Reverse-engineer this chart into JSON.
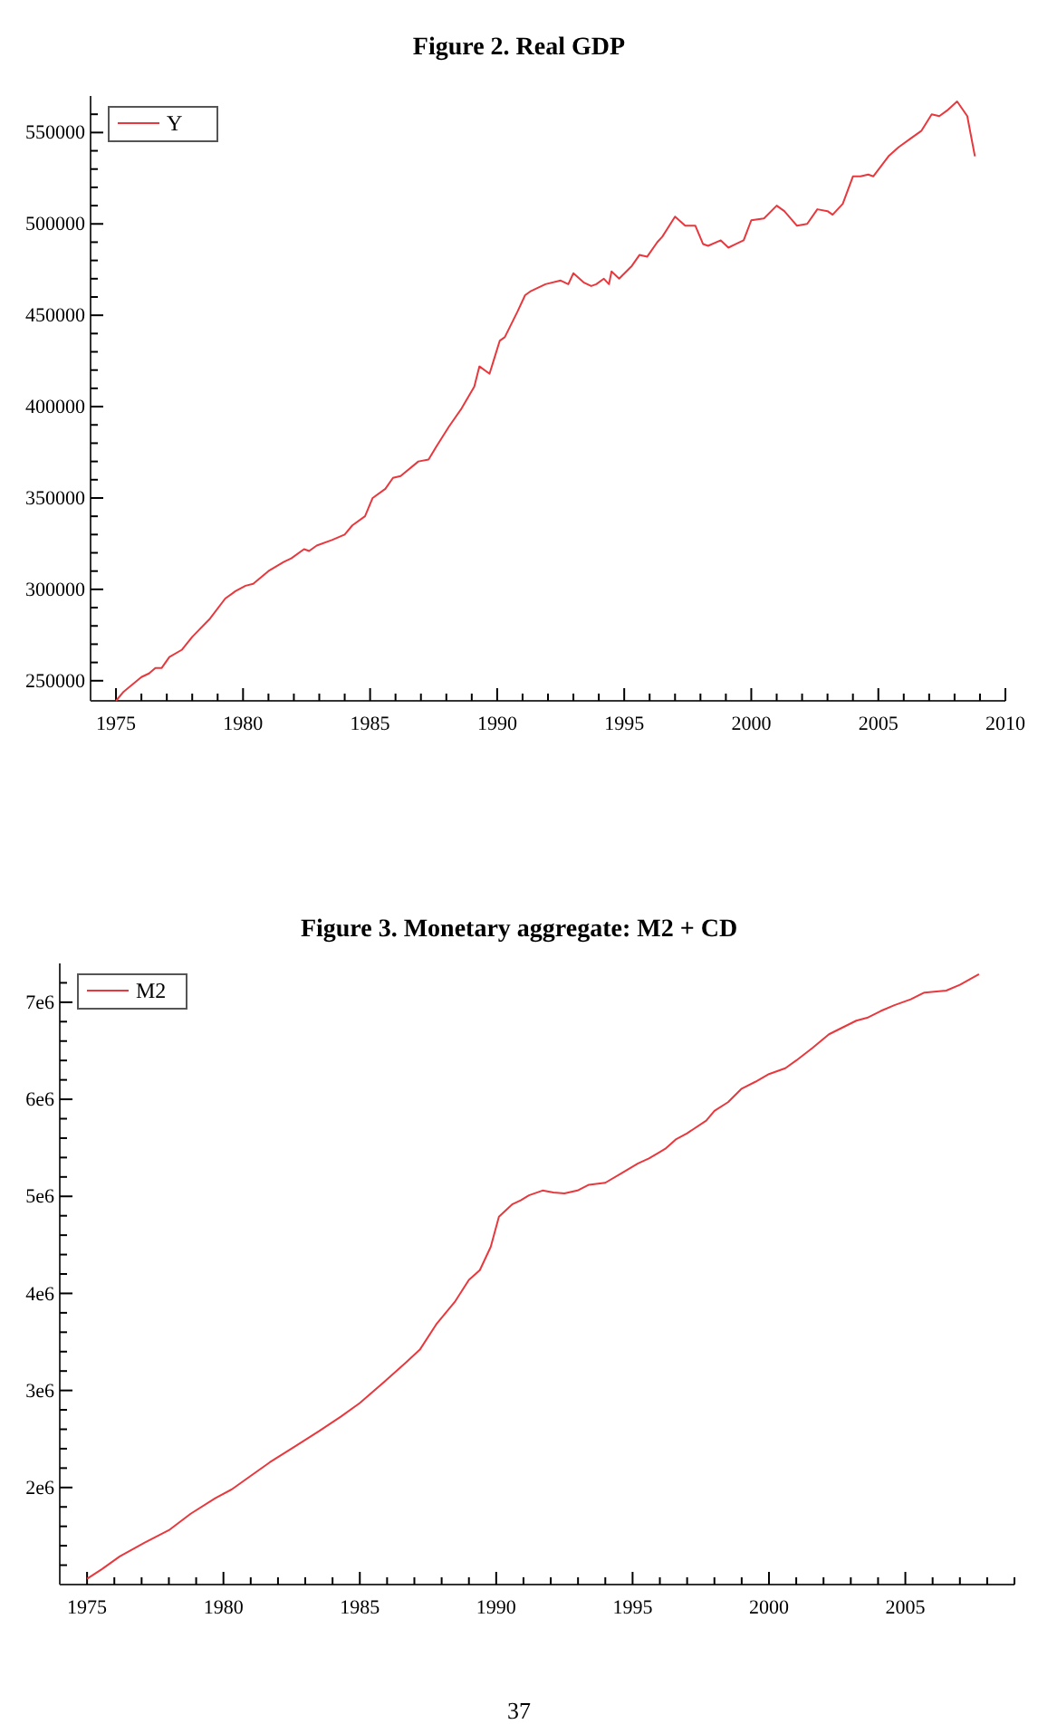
{
  "chart_data": [
    {
      "type": "line",
      "title": "Figure 2.  Real GDP",
      "legend": "top left",
      "xlim": [
        1974,
        2010
      ],
      "ylim": [
        239000,
        570000
      ],
      "xticks": [
        1975,
        {
          "value": 1976,
          "label": null
        },
        {
          "value": 1977,
          "label": null
        },
        {
          "value": 1978,
          "label": null
        },
        {
          "value": 1979,
          "label": null
        },
        1980,
        {
          "value": 1981,
          "label": null
        },
        {
          "value": 1982,
          "label": null
        },
        {
          "value": 1983,
          "label": null
        },
        {
          "value": 1984,
          "label": null
        },
        1985,
        {
          "value": 1986,
          "label": null
        },
        {
          "value": 1987,
          "label": null
        },
        {
          "value": 1988,
          "label": null
        },
        {
          "value": 1989,
          "label": null
        },
        1990,
        {
          "value": 1991,
          "label": null
        },
        {
          "value": 1992,
          "label": null
        },
        {
          "value": 1993,
          "label": null
        },
        {
          "value": 1994,
          "label": null
        },
        1995,
        {
          "value": 1996,
          "label": null
        },
        {
          "value": 1997,
          "label": null
        },
        {
          "value": 1998,
          "label": null
        },
        {
          "value": 1999,
          "label": null
        },
        2000,
        {
          "value": 2001,
          "label": null
        },
        {
          "value": 2002,
          "label": null
        },
        {
          "value": 2003,
          "label": null
        },
        {
          "value": 2004,
          "label": null
        },
        2005,
        {
          "value": 2006,
          "label": null
        },
        {
          "value": 2007,
          "label": null
        },
        {
          "value": 2008,
          "label": null
        },
        {
          "value": 2009,
          "label": null
        },
        2010
      ],
      "yticks": [
        250000,
        {
          "value": 260000,
          "label": null
        },
        {
          "value": 270000,
          "label": null
        },
        {
          "value": 280000,
          "label": null
        },
        {
          "value": 290000,
          "label": null
        },
        300000,
        {
          "value": 310000,
          "label": null
        },
        {
          "value": 320000,
          "label": null
        },
        {
          "value": 330000,
          "label": null
        },
        {
          "value": 340000,
          "label": null
        },
        350000,
        {
          "value": 360000,
          "label": null
        },
        {
          "value": 370000,
          "label": null
        },
        {
          "value": 380000,
          "label": null
        },
        {
          "value": 390000,
          "label": null
        },
        400000,
        {
          "value": 410000,
          "label": null
        },
        {
          "value": 420000,
          "label": null
        },
        {
          "value": 430000,
          "label": null
        },
        {
          "value": 440000,
          "label": null
        },
        450000,
        {
          "value": 460000,
          "label": null
        },
        {
          "value": 470000,
          "label": null
        },
        {
          "value": 480000,
          "label": null
        },
        {
          "value": 490000,
          "label": null
        },
        500000,
        {
          "value": 510000,
          "label": null
        },
        {
          "value": 520000,
          "label": null
        },
        {
          "value": 530000,
          "label": null
        },
        {
          "value": 540000,
          "label": null
        },
        550000,
        {
          "value": 560000,
          "label": null
        }
      ],
      "series": [
        {
          "name": "Y",
          "color": "#e8383d",
          "x": [
            1975.0,
            1975.3,
            1976.0,
            1976.3,
            1976.55,
            1976.8,
            1977.1,
            1977.6,
            1978.0,
            1978.7,
            1979.3,
            1979.7,
            1980.1,
            1980.4,
            1981.0,
            1981.6,
            1981.9,
            1982.4,
            1982.6,
            1982.9,
            1983.5,
            1984.0,
            1984.3,
            1984.8,
            1985.1,
            1985.6,
            1985.9,
            1986.2,
            1986.9,
            1987.3,
            1987.6,
            1988.1,
            1988.6,
            1989.1,
            1989.3,
            1989.7,
            1989.9,
            1990.1,
            1990.3,
            1990.8,
            1991.1,
            1991.3,
            1991.9,
            1992.5,
            1992.8,
            1993.0,
            1993.4,
            1993.7,
            1993.9,
            1994.2,
            1994.4,
            1994.5,
            1994.8,
            1995.3,
            1995.6,
            1995.9,
            1996.3,
            1996.5,
            1997.0,
            1997.4,
            1997.8,
            1998.1,
            1998.3,
            1998.8,
            1999.1,
            1999.4,
            1999.7,
            2000.0,
            2000.5,
            2001.0,
            2001.3,
            2001.8,
            2002.2,
            2002.6,
            2003.0,
            2003.2,
            2003.6,
            2004.0,
            2004.3,
            2004.6,
            2004.8,
            2005.4,
            2005.8,
            2006.3,
            2006.7,
            2007.1,
            2007.4,
            2007.7,
            2008.1,
            2008.5,
            2008.8
          ],
          "values": [
            239000,
            244000,
            252000,
            254000,
            257000,
            257000,
            263000,
            267000,
            274000,
            284000,
            295000,
            299000,
            302000,
            303000,
            310000,
            315000,
            317000,
            322000,
            321000,
            324000,
            327000,
            330000,
            335000,
            340000,
            350000,
            355000,
            361000,
            362000,
            370000,
            371000,
            378000,
            389000,
            399000,
            411000,
            422000,
            418000,
            427000,
            436000,
            438000,
            452000,
            461000,
            463000,
            467000,
            469000,
            467000,
            473000,
            468000,
            466000,
            467000,
            470000,
            467000,
            474000,
            470000,
            477000,
            483000,
            482000,
            490000,
            493000,
            504000,
            499000,
            499000,
            489000,
            488000,
            491000,
            487000,
            489000,
            491000,
            502000,
            503000,
            510000,
            507000,
            499000,
            500000,
            508000,
            507000,
            505000,
            511000,
            526000,
            526000,
            527000,
            526000,
            537000,
            542000,
            547000,
            551000,
            560000,
            559000,
            562000,
            567000,
            559000,
            537000
          ]
        }
      ]
    },
    {
      "type": "line",
      "title": "Figure 3.  Monetary aggregate: M2 + CD",
      "legend": "top left",
      "annotations": [
        "37"
      ],
      "xlim": [
        1974,
        2009
      ],
      "ylim": [
        1000000,
        7400000
      ],
      "xticks": [
        1975,
        {
          "value": 1976,
          "label": null
        },
        {
          "value": 1977,
          "label": null
        },
        {
          "value": 1978,
          "label": null
        },
        {
          "value": 1979,
          "label": null
        },
        1980,
        {
          "value": 1981,
          "label": null
        },
        {
          "value": 1982,
          "label": null
        },
        {
          "value": 1983,
          "label": null
        },
        {
          "value": 1984,
          "label": null
        },
        1985,
        {
          "value": 1986,
          "label": null
        },
        {
          "value": 1987,
          "label": null
        },
        {
          "value": 1988,
          "label": null
        },
        {
          "value": 1989,
          "label": null
        },
        1990,
        {
          "value": 1991,
          "label": null
        },
        {
          "value": 1992,
          "label": null
        },
        {
          "value": 1993,
          "label": null
        },
        {
          "value": 1994,
          "label": null
        },
        1995,
        {
          "value": 1996,
          "label": null
        },
        {
          "value": 1997,
          "label": null
        },
        {
          "value": 1998,
          "label": null
        },
        {
          "value": 1999,
          "label": null
        },
        2000,
        {
          "value": 2001,
          "label": null
        },
        {
          "value": 2002,
          "label": null
        },
        {
          "value": 2003,
          "label": null
        },
        {
          "value": 2004,
          "label": null
        },
        2005,
        {
          "value": 2006,
          "label": null
        },
        {
          "value": 2007,
          "label": null
        },
        {
          "value": 2008,
          "label": null
        },
        {
          "value": 2009,
          "label": null
        }
      ],
      "yticks": [
        {
          "value": 1200000,
          "label": null
        },
        {
          "value": 1400000,
          "label": null
        },
        {
          "value": 1600000,
          "label": null
        },
        {
          "value": 1800000,
          "label": null
        },
        {
          "value": 2000000,
          "label": "2e6"
        },
        {
          "value": 2200000,
          "label": null
        },
        {
          "value": 2400000,
          "label": null
        },
        {
          "value": 2600000,
          "label": null
        },
        {
          "value": 2800000,
          "label": null
        },
        {
          "value": 3000000,
          "label": "3e6"
        },
        {
          "value": 3200000,
          "label": null
        },
        {
          "value": 3400000,
          "label": null
        },
        {
          "value": 3600000,
          "label": null
        },
        {
          "value": 3800000,
          "label": null
        },
        {
          "value": 4000000,
          "label": "4e6"
        },
        {
          "value": 4200000,
          "label": null
        },
        {
          "value": 4400000,
          "label": null
        },
        {
          "value": 4600000,
          "label": null
        },
        {
          "value": 4800000,
          "label": null
        },
        {
          "value": 5000000,
          "label": "5e6"
        },
        {
          "value": 5200000,
          "label": null
        },
        {
          "value": 5400000,
          "label": null
        },
        {
          "value": 5600000,
          "label": null
        },
        {
          "value": 5800000,
          "label": null
        },
        {
          "value": 6000000,
          "label": "6e6"
        },
        {
          "value": 6200000,
          "label": null
        },
        {
          "value": 6400000,
          "label": null
        },
        {
          "value": 6600000,
          "label": null
        },
        {
          "value": 6800000,
          "label": null
        },
        {
          "value": 7000000,
          "label": "7e6"
        },
        {
          "value": 7200000,
          "label": null
        }
      ],
      "series": [
        {
          "name": "M2",
          "color": "#e8383d",
          "x": [
            1975.0,
            1975.55,
            1976.2,
            1977.1,
            1978.0,
            1978.8,
            1979.7,
            1980.3,
            1980.8,
            1981.7,
            1982.6,
            1983.5,
            1984.3,
            1985.0,
            1985.9,
            1986.7,
            1987.2,
            1987.8,
            1988.5,
            1989.0,
            1989.4,
            1989.8,
            1990.1,
            1990.6,
            1990.9,
            1991.2,
            1991.7,
            1992.1,
            1992.5,
            1992.98,
            1993.4,
            1994.0,
            1994.6,
            1995.2,
            1995.6,
            1996.2,
            1996.6,
            1997.0,
            1997.7,
            1998.0,
            1998.5,
            1999.0,
            1999.5,
            2000.0,
            2000.6,
            2001.0,
            2001.6,
            2002.2,
            2002.7,
            2003.2,
            2003.6,
            2004.1,
            2004.6,
            2005.2,
            2005.7,
            2006.5,
            2007.0,
            2007.7
          ],
          "values": [
            1060000,
            1160000,
            1290000,
            1430000,
            1560000,
            1730000,
            1890000,
            1980000,
            2080000,
            2260000,
            2420000,
            2580000,
            2730000,
            2870000,
            3090000,
            3290000,
            3420000,
            3680000,
            3920000,
            4140000,
            4240000,
            4480000,
            4790000,
            4920000,
            4960000,
            5010000,
            5060000,
            5040000,
            5030000,
            5060000,
            5120000,
            5140000,
            5240000,
            5340000,
            5390000,
            5490000,
            5590000,
            5650000,
            5780000,
            5880000,
            5970000,
            6110000,
            6180000,
            6260000,
            6320000,
            6400000,
            6530000,
            6670000,
            6740000,
            6810000,
            6840000,
            6910000,
            6970000,
            7030000,
            7100000,
            7120000,
            7180000,
            7290000
          ]
        }
      ]
    }
  ]
}
